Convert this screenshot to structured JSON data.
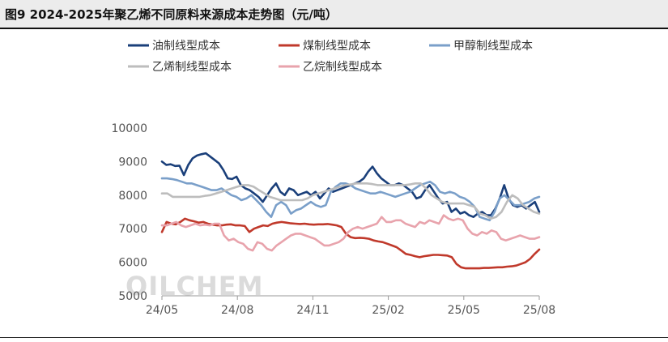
{
  "title": "图9 2024-2025年聚乙烯不同原料来源成本走势图（元/吨）",
  "watermark": "OILCHEM",
  "chart_data": {
    "type": "line",
    "title": "图9 2024-2025年聚乙烯不同原料来源成本走势图（元/吨）",
    "xlabel": "",
    "ylabel": "",
    "ylim": [
      5000,
      10000
    ],
    "yticks": [
      5000,
      6000,
      7000,
      8000,
      9000,
      10000
    ],
    "xticks": [
      "24/05",
      "24/08",
      "24/11",
      "25/02",
      "25/05",
      "25/08"
    ],
    "grid": false,
    "legend_position": "top",
    "series": [
      {
        "name": "油制线型成本",
        "color": "#1a3f7a",
        "values": [
          9000,
          8900,
          8920,
          8870,
          8880,
          8600,
          8900,
          9100,
          9180,
          9220,
          9250,
          9150,
          9050,
          8950,
          8750,
          8500,
          8480,
          8550,
          8300,
          8200,
          8150,
          8050,
          7950,
          7800,
          8000,
          8200,
          8350,
          8100,
          8000,
          8200,
          8150,
          8000,
          8050,
          8100,
          8000,
          8100,
          7900,
          8050,
          8200,
          8100,
          8150,
          8200,
          8250,
          8300,
          8350,
          8400,
          8500,
          8700,
          8850,
          8650,
          8500,
          8400,
          8300,
          8300,
          8350,
          8300,
          8200,
          8100,
          7900,
          7950,
          8150,
          8300,
          8100,
          7900,
          7750,
          7800,
          7500,
          7600,
          7450,
          7500,
          7400,
          7350,
          7450,
          7500,
          7400,
          7400,
          7600,
          7900,
          8300,
          7900,
          7700,
          7650,
          7700,
          7600,
          7700,
          7800,
          7500
        ]
      },
      {
        "name": "煤制线型成本",
        "color": "#c0392b",
        "values": [
          6900,
          7200,
          7150,
          7130,
          7200,
          7300,
          7250,
          7220,
          7180,
          7200,
          7150,
          7120,
          7100,
          7100,
          7120,
          7130,
          7100,
          7100,
          7080,
          6900,
          7000,
          7050,
          7100,
          7080,
          7150,
          7180,
          7200,
          7180,
          7160,
          7150,
          7140,
          7150,
          7130,
          7120,
          7130,
          7130,
          7140,
          7120,
          7100,
          7050,
          6850,
          6750,
          6720,
          6730,
          6720,
          6700,
          6650,
          6620,
          6600,
          6550,
          6500,
          6450,
          6350,
          6250,
          6220,
          6180,
          6150,
          6180,
          6200,
          6220,
          6220,
          6210,
          6200,
          6150,
          5950,
          5850,
          5820,
          5820,
          5820,
          5820,
          5830,
          5830,
          5840,
          5850,
          5850,
          5870,
          5880,
          5900,
          5950,
          6000,
          6100,
          6250,
          6380
        ]
      },
      {
        "name": "甲醇制线型成本",
        "color": "#7a9fc9",
        "values": [
          8500,
          8500,
          8480,
          8450,
          8400,
          8350,
          8350,
          8300,
          8250,
          8200,
          8150,
          8150,
          8200,
          8100,
          8000,
          7950,
          7850,
          7900,
          8000,
          7850,
          7700,
          7500,
          7350,
          7700,
          7800,
          7700,
          7450,
          7550,
          7600,
          7700,
          7800,
          7700,
          7650,
          7700,
          8100,
          8250,
          8350,
          8350,
          8300,
          8200,
          8150,
          8100,
          8050,
          8050,
          8100,
          8050,
          8000,
          7950,
          8000,
          8050,
          8100,
          8200,
          8300,
          8350,
          8400,
          8300,
          8100,
          8050,
          8100,
          8050,
          7950,
          7900,
          7800,
          7650,
          7350,
          7300,
          7250,
          7500,
          7900,
          8000,
          7850,
          7700,
          7700,
          7750,
          7800,
          7900,
          7950
        ]
      },
      {
        "name": "乙烯制线型成本",
        "color": "#bdbdbd",
        "values": [
          8050,
          8050,
          7950,
          7950,
          7950,
          7950,
          7950,
          7950,
          7980,
          8000,
          8050,
          8100,
          8150,
          8200,
          8250,
          8300,
          8300,
          8250,
          8150,
          8050,
          7950,
          7900,
          7850,
          7850,
          7850,
          7850,
          7850,
          7900,
          8000,
          8050,
          8100,
          8150,
          8200,
          8250,
          8300,
          8320,
          8350,
          8350,
          8350,
          8330,
          8300,
          8300,
          8300,
          8300,
          8300,
          8300,
          8320,
          8350,
          8350,
          8200,
          8000,
          7900,
          7800,
          7750,
          7750,
          7750,
          7750,
          7700,
          7650,
          7450,
          7400,
          7300,
          7350,
          7500,
          7800,
          8000,
          7900,
          7700,
          7600,
          7500,
          7450
        ]
      },
      {
        "name": "乙烷制线型成本",
        "color": "#e8a3ac",
        "values": [
          7100,
          7100,
          7150,
          7200,
          7100,
          7050,
          7100,
          7150,
          7100,
          7120,
          7100,
          7150,
          7150,
          6800,
          6650,
          6700,
          6600,
          6550,
          6400,
          6350,
          6600,
          6550,
          6400,
          6350,
          6500,
          6600,
          6700,
          6800,
          6850,
          6850,
          6800,
          6750,
          6700,
          6600,
          6500,
          6500,
          6550,
          6600,
          6700,
          6900,
          7000,
          7050,
          7000,
          7050,
          7100,
          7150,
          7350,
          7200,
          7200,
          7250,
          7250,
          7150,
          7100,
          7050,
          7200,
          7150,
          7250,
          7200,
          7150,
          7400,
          7300,
          7250,
          7300,
          7250,
          7000,
          6850,
          6800,
          6900,
          6850,
          6950,
          6900,
          6700,
          6650,
          6700,
          6750,
          6800,
          6750,
          6700,
          6700,
          6750
        ]
      }
    ]
  }
}
